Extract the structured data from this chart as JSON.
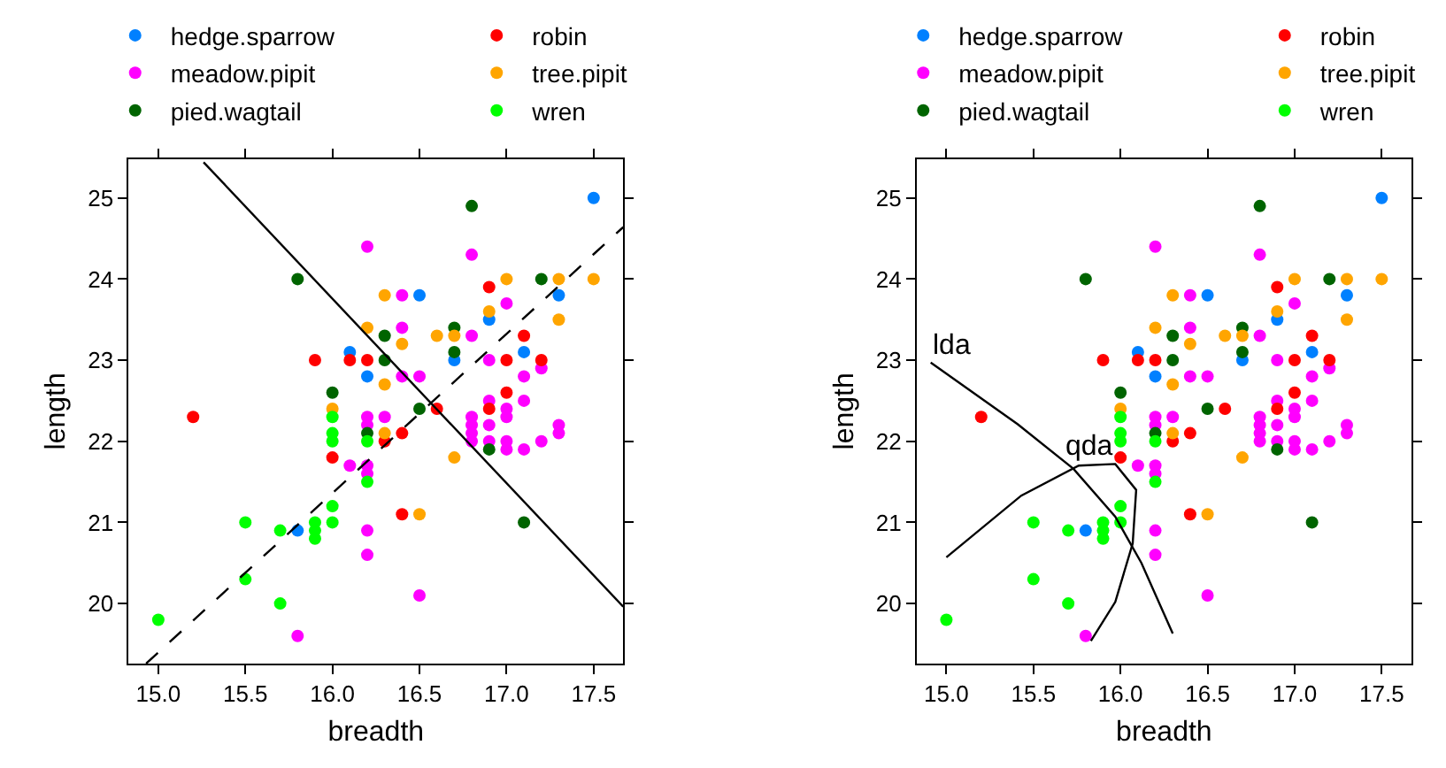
{
  "chart_data": [
    {
      "type": "scatter",
      "xlabel": "breadth",
      "ylabel": "length",
      "xlim": [
        14.83,
        17.67
      ],
      "ylim": [
        19.26,
        25.48
      ],
      "xticks": [
        {
          "value": 15,
          "label": "15.0"
        },
        {
          "value": 15.5,
          "label": "15.5"
        },
        {
          "value": 16,
          "label": "16.0"
        },
        {
          "value": 16.5,
          "label": "16.5"
        },
        {
          "value": 17,
          "label": "17.0"
        },
        {
          "value": 17.5,
          "label": "17.5"
        }
      ],
      "yticks": [
        20,
        21,
        22,
        23,
        24,
        25
      ],
      "legend": "top",
      "marker": "circle",
      "series": [
        {
          "name": "hedge.sparrow",
          "color": "#0080ff",
          "x": [
            16.1,
            16.2,
            15.8,
            17.5,
            17.3,
            16.5,
            16.9,
            16.7,
            17.1
          ],
          "values": [
            23.1,
            22.8,
            20.9,
            25.0,
            23.8,
            23.8,
            23.5,
            23.0,
            23.1
          ]
        },
        {
          "name": "meadow.pipit",
          "color": "#ff00ff",
          "x": [
            16.2,
            16.2,
            16.2,
            16.3,
            16.1,
            16.2,
            16.2,
            16.2,
            16.2,
            15.8,
            16.8,
            17.0,
            16.4,
            16.4,
            16.8,
            16.9,
            17.2,
            16.4,
            16.5,
            17.1,
            17.1,
            16.9,
            17.0,
            17.0,
            16.8,
            16.8,
            16.8,
            16.8,
            16.9,
            16.9,
            17.0,
            17.0,
            17.1,
            17.2,
            17.3,
            17.3,
            16.5
          ],
          "values": [
            24.4,
            22.3,
            22.2,
            22.3,
            21.7,
            21.7,
            21.6,
            20.9,
            20.6,
            19.6,
            24.3,
            23.7,
            23.8,
            23.4,
            23.3,
            23.0,
            22.9,
            22.8,
            22.8,
            22.8,
            22.5,
            22.5,
            22.4,
            22.3,
            22.3,
            22.2,
            22.1,
            22.0,
            22.2,
            22.0,
            22.0,
            21.9,
            21.9,
            22.0,
            22.2,
            22.1,
            20.1
          ]
        },
        {
          "name": "pied.wagtail",
          "color": "#006400",
          "x": [
            15.8,
            16.3,
            16.3,
            16.0,
            16.2,
            16.8,
            17.2,
            16.7,
            16.7,
            16.5,
            16.9,
            17.1
          ],
          "values": [
            24.0,
            23.3,
            23.0,
            22.6,
            22.1,
            24.9,
            24.0,
            23.4,
            23.1,
            22.4,
            21.9,
            21.0
          ]
        },
        {
          "name": "robin",
          "color": "#ff0000",
          "x": [
            15.9,
            16.1,
            16.2,
            15.2,
            16.3,
            16.0,
            16.9,
            17.1,
            17.0,
            17.2,
            17.0,
            16.9,
            16.6,
            16.4,
            16.4
          ],
          "values": [
            23.0,
            23.0,
            23.0,
            22.3,
            22.0,
            21.8,
            23.9,
            23.3,
            23.0,
            23.0,
            22.6,
            22.4,
            22.4,
            22.1,
            21.1
          ]
        },
        {
          "name": "tree.pipit",
          "color": "#ffa500",
          "x": [
            16.3,
            16.2,
            16.3,
            16.0,
            16.3,
            17.0,
            17.3,
            17.5,
            16.9,
            17.3,
            16.4,
            16.6,
            16.7,
            16.7,
            16.5
          ],
          "values": [
            23.8,
            23.4,
            22.7,
            22.4,
            22.1,
            24.0,
            24.0,
            24.0,
            23.6,
            23.5,
            23.2,
            23.3,
            23.3,
            21.8,
            21.1
          ]
        },
        {
          "name": "wren",
          "color": "#00ff00",
          "x": [
            16.0,
            16.0,
            16.0,
            16.2,
            16.2,
            16.0,
            15.5,
            16.0,
            15.7,
            15.9,
            15.9,
            15.9,
            15.5,
            15.7,
            15.0
          ],
          "values": [
            22.3,
            22.1,
            22.0,
            22.0,
            21.5,
            21.2,
            21.0,
            21.0,
            20.9,
            21.0,
            20.9,
            20.8,
            20.3,
            20.0,
            19.8
          ]
        },
        {
          "type": "line",
          "color": "#000000",
          "line_style": "solid",
          "marker": "none",
          "x": [
            15.26,
            17.67
          ],
          "values": [
            25.44,
            19.96
          ]
        },
        {
          "type": "line",
          "color": "#000000",
          "line_style": "dashed",
          "marker": "none",
          "x": [
            14.93,
            17.67
          ],
          "values": [
            19.26,
            24.64
          ]
        }
      ]
    },
    {
      "type": "scatter",
      "xlabel": "breadth",
      "ylabel": "length",
      "xlim": [
        14.83,
        17.67
      ],
      "ylim": [
        19.26,
        25.48
      ],
      "xticks": [
        {
          "value": 15,
          "label": "15.0"
        },
        {
          "value": 15.5,
          "label": "15.5"
        },
        {
          "value": 16,
          "label": "16.0"
        },
        {
          "value": 16.5,
          "label": "16.5"
        },
        {
          "value": 17,
          "label": "17.0"
        },
        {
          "value": 17.5,
          "label": "17.5"
        }
      ],
      "yticks": [
        20,
        21,
        22,
        23,
        24,
        25
      ],
      "legend": "top",
      "marker": "circle",
      "annotations": [
        {
          "text": "lda",
          "x": 14.91,
          "y": 22.97
        },
        {
          "text": "qda",
          "x": 15.97,
          "y": 21.72
        }
      ],
      "series": [
        {
          "name": "hedge.sparrow",
          "color": "#0080ff",
          "x": [
            16.1,
            16.2,
            15.8,
            17.5,
            17.3,
            16.5,
            16.9,
            16.7,
            17.1
          ],
          "values": [
            23.1,
            22.8,
            20.9,
            25.0,
            23.8,
            23.8,
            23.5,
            23.0,
            23.1
          ]
        },
        {
          "name": "meadow.pipit",
          "color": "#ff00ff",
          "x": [
            16.2,
            16.2,
            16.2,
            16.3,
            16.1,
            16.2,
            16.2,
            16.2,
            16.2,
            15.8,
            16.8,
            17.0,
            16.4,
            16.4,
            16.8,
            16.9,
            17.2,
            16.4,
            16.5,
            17.1,
            17.1,
            16.9,
            17.0,
            17.0,
            16.8,
            16.8,
            16.8,
            16.8,
            16.9,
            16.9,
            17.0,
            17.0,
            17.1,
            17.2,
            17.3,
            17.3,
            16.5
          ],
          "values": [
            24.4,
            22.3,
            22.2,
            22.3,
            21.7,
            21.7,
            21.6,
            20.9,
            20.6,
            19.6,
            24.3,
            23.7,
            23.8,
            23.4,
            23.3,
            23.0,
            22.9,
            22.8,
            22.8,
            22.8,
            22.5,
            22.5,
            22.4,
            22.3,
            22.3,
            22.2,
            22.1,
            22.0,
            22.2,
            22.0,
            22.0,
            21.9,
            21.9,
            22.0,
            22.2,
            22.1,
            20.1
          ]
        },
        {
          "name": "pied.wagtail",
          "color": "#006400",
          "x": [
            15.8,
            16.3,
            16.3,
            16.0,
            16.2,
            16.8,
            17.2,
            16.7,
            16.7,
            16.5,
            16.9,
            17.1
          ],
          "values": [
            24.0,
            23.3,
            23.0,
            22.6,
            22.1,
            24.9,
            24.0,
            23.4,
            23.1,
            22.4,
            21.9,
            21.0
          ]
        },
        {
          "name": "robin",
          "color": "#ff0000",
          "x": [
            15.9,
            16.1,
            16.2,
            15.2,
            16.3,
            16.0,
            16.9,
            17.1,
            17.0,
            17.2,
            17.0,
            16.9,
            16.6,
            16.4,
            16.4
          ],
          "values": [
            23.0,
            23.0,
            23.0,
            22.3,
            22.0,
            21.8,
            23.9,
            23.3,
            23.0,
            23.0,
            22.6,
            22.4,
            22.4,
            22.1,
            21.1
          ]
        },
        {
          "name": "tree.pipit",
          "color": "#ffa500",
          "x": [
            16.3,
            16.2,
            16.3,
            16.0,
            16.3,
            17.0,
            17.3,
            17.5,
            16.9,
            17.3,
            16.4,
            16.6,
            16.7,
            16.7,
            16.5
          ],
          "values": [
            23.8,
            23.4,
            22.7,
            22.4,
            22.1,
            24.0,
            24.0,
            24.0,
            23.6,
            23.5,
            23.2,
            23.3,
            23.3,
            21.8,
            21.1
          ]
        },
        {
          "name": "wren",
          "color": "#00ff00",
          "x": [
            16.0,
            16.0,
            16.0,
            16.2,
            16.2,
            16.0,
            15.5,
            16.0,
            15.7,
            15.9,
            15.9,
            15.9,
            15.5,
            15.7,
            15.0
          ],
          "values": [
            22.3,
            22.1,
            22.0,
            22.0,
            21.5,
            21.2,
            21.0,
            21.0,
            20.9,
            21.0,
            20.9,
            20.8,
            20.3,
            20.0,
            19.8
          ]
        },
        {
          "type": "line",
          "color": "#000000",
          "line_style": "solid",
          "marker": "none",
          "x": [
            14.91,
            15.41,
            15.73,
            15.97,
            16.12,
            16.3
          ],
          "values": [
            22.97,
            22.21,
            21.66,
            21.07,
            20.5,
            19.63
          ]
        },
        {
          "type": "line",
          "color": "#000000",
          "line_style": "solid",
          "marker": "none",
          "x": [
            15.0,
            15.43,
            15.76,
            15.97,
            16.09,
            16.07,
            15.97,
            15.83
          ],
          "values": [
            20.57,
            21.33,
            21.7,
            21.72,
            21.4,
            20.74,
            20.02,
            19.54
          ]
        }
      ]
    }
  ]
}
